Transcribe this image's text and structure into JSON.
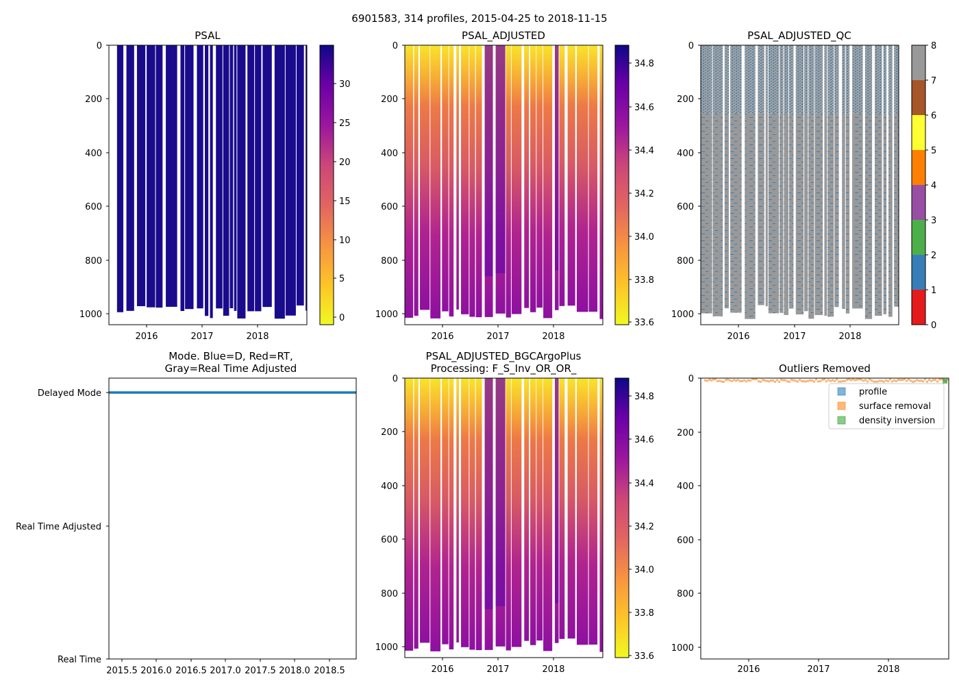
{
  "figure": {
    "title": "6901583, 314 profiles, 2015-04-25 to 2018-11-15"
  },
  "chart_data": [
    {
      "id": "psal",
      "type": "heatmap",
      "title": "PSAL",
      "x_ticks": [
        "2016",
        "2017",
        "2018"
      ],
      "y_ticks": [
        "0",
        "200",
        "400",
        "600",
        "800",
        "1000"
      ],
      "ylim": [
        1040,
        0
      ],
      "colorbar": {
        "colormap": "plasma_r",
        "ticks": [
          "0",
          "5",
          "10",
          "15",
          "20",
          "25",
          "30"
        ],
        "range": [
          -1,
          35
        ]
      }
    },
    {
      "id": "psal_adjusted",
      "type": "heatmap",
      "title": "PSAL_ADJUSTED",
      "x_ticks": [
        "2016",
        "2017",
        "2018"
      ],
      "y_ticks": [
        "0",
        "200",
        "400",
        "600",
        "800",
        "1000"
      ],
      "ylim": [
        1040,
        0
      ],
      "colorbar": {
        "colormap": "plasma_r",
        "ticks": [
          "33.6",
          "33.8",
          "34.0",
          "34.2",
          "34.4",
          "34.6",
          "34.8"
        ],
        "range": [
          33.58,
          34.88
        ]
      }
    },
    {
      "id": "psal_adjusted_qc",
      "type": "heatmap",
      "title": "PSAL_ADJUSTED_QC",
      "x_ticks": [
        "2016",
        "2017",
        "2018"
      ],
      "y_ticks": [
        "0",
        "200",
        "400",
        "600",
        "800",
        "1000"
      ],
      "ylim": [
        1040,
        0
      ],
      "colorbar": {
        "colormap": "qc-discrete",
        "ticks": [
          "0",
          "1",
          "2",
          "3",
          "4",
          "5",
          "6",
          "7",
          "8"
        ],
        "colors": [
          "#e41a1c",
          "#377eb8",
          "#4daf4a",
          "#984ea3",
          "#ff7f00",
          "#ffff33",
          "#a65628",
          "#f781bf",
          "#999999"
        ]
      }
    },
    {
      "id": "mode",
      "type": "scatter",
      "title_line1": "Mode. Blue=D, Red=RT,",
      "title_line2": "Gray=Real Time Adjusted",
      "x_ticks": [
        "2015.5",
        "2016.0",
        "2016.5",
        "2017.0",
        "2017.5",
        "2018.0",
        "2018.5"
      ],
      "xlim": [
        2015.3,
        2018.88
      ],
      "y_categories": [
        "Delayed Mode",
        "Real Time Adjusted",
        "Real Time"
      ],
      "points_mode": "Delayed Mode",
      "point_color": "#1f77b4"
    },
    {
      "id": "psal_adjusted_bgc",
      "type": "heatmap",
      "title_line1": "PSAL_ADJUSTED_BGCArgoPlus",
      "title_line2": "Processing: F_S_Inv_OR_OR_",
      "x_ticks": [
        "2016",
        "2017",
        "2018"
      ],
      "y_ticks": [
        "0",
        "200",
        "400",
        "600",
        "800",
        "1000"
      ],
      "ylim": [
        1040,
        0
      ],
      "colorbar": {
        "colormap": "plasma_r",
        "ticks": [
          "33.6",
          "33.8",
          "34.0",
          "34.2",
          "34.4",
          "34.6",
          "34.8"
        ],
        "range": [
          33.58,
          34.88
        ]
      }
    },
    {
      "id": "outliers",
      "type": "scatter",
      "title": "Outliers Removed",
      "x_ticks": [
        "2016",
        "2017",
        "2018"
      ],
      "y_ticks": [
        "0",
        "200",
        "400",
        "600",
        "800",
        "1000"
      ],
      "ylim": [
        1040,
        0
      ],
      "legend_position": "top-right",
      "series": [
        {
          "name": "profile",
          "color": "#1f77b4"
        },
        {
          "name": "surface removal",
          "color": "#ff7f0e"
        },
        {
          "name": "density inversion",
          "color": "#2ca02c"
        }
      ]
    }
  ]
}
